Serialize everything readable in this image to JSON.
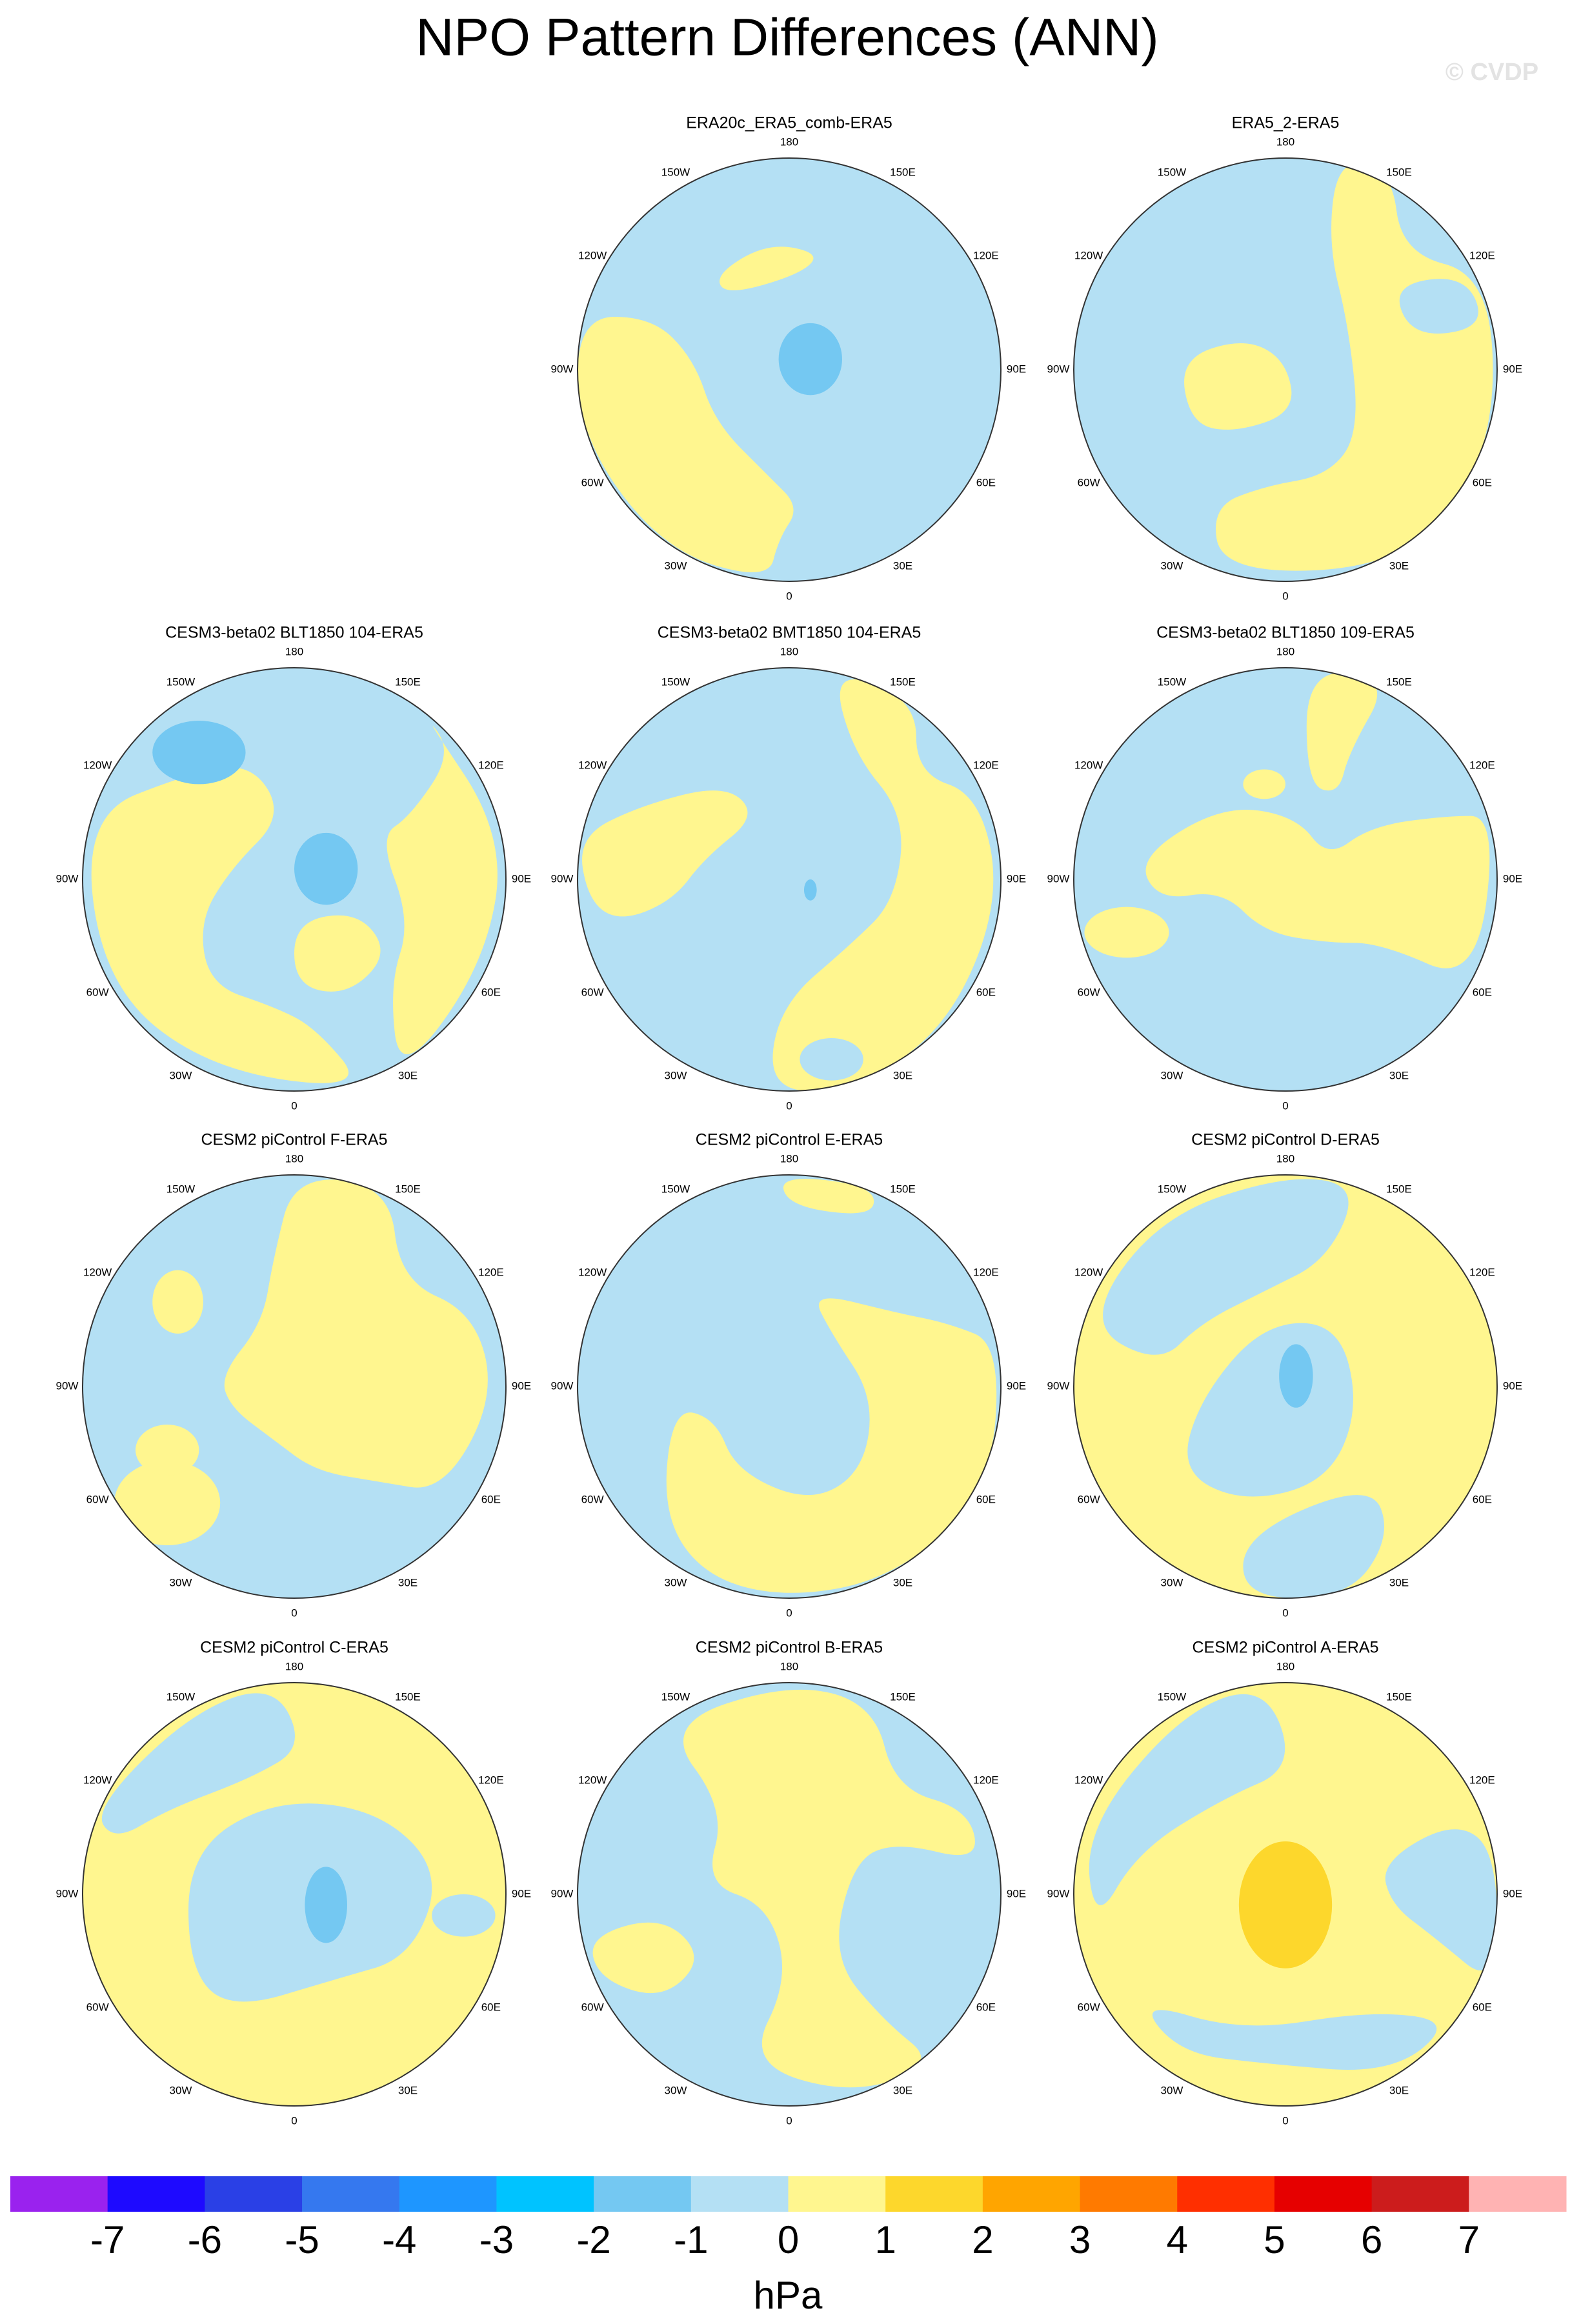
{
  "title": "NPO Pattern Differences (ANN)",
  "watermark": "© CVDP",
  "longitude_labels": [
    "0",
    "30E",
    "60E",
    "90E",
    "120E",
    "150E",
    "180",
    "150W",
    "120W",
    "90W",
    "60W",
    "30W"
  ],
  "panels": [
    {
      "title": "ERA20c_ERA5_comb-ERA5"
    },
    {
      "title": "ERA5_2-ERA5"
    },
    {
      "title": "CESM3-beta02 BLT1850 104-ERA5"
    },
    {
      "title": "CESM3-beta02 BMT1850 104-ERA5"
    },
    {
      "title": "CESM3-beta02 BLT1850 109-ERA5"
    },
    {
      "title": "CESM2 piControl F-ERA5"
    },
    {
      "title": "CESM2 piControl E-ERA5"
    },
    {
      "title": "CESM2 piControl D-ERA5"
    },
    {
      "title": "CESM2 piControl C-ERA5"
    },
    {
      "title": "CESM2 piControl B-ERA5"
    },
    {
      "title": "CESM2 piControl A-ERA5"
    }
  ],
  "colorbar": {
    "colors": [
      "#9a22ee",
      "#1e0aff",
      "#2a40e6",
      "#3578ef",
      "#1e96ff",
      "#00c3ff",
      "#74c8f2",
      "#b4e0f4",
      "#fff68f",
      "#fdd72c",
      "#ffa500",
      "#ff7a00",
      "#ff2f00",
      "#e60000",
      "#cc1c1c",
      "#ffb3b3"
    ],
    "ticks": [
      -7,
      -6,
      -5,
      -4,
      -3,
      -2,
      -1,
      0,
      1,
      2,
      3,
      4,
      5,
      6,
      7
    ],
    "label": "hPa"
  }
}
